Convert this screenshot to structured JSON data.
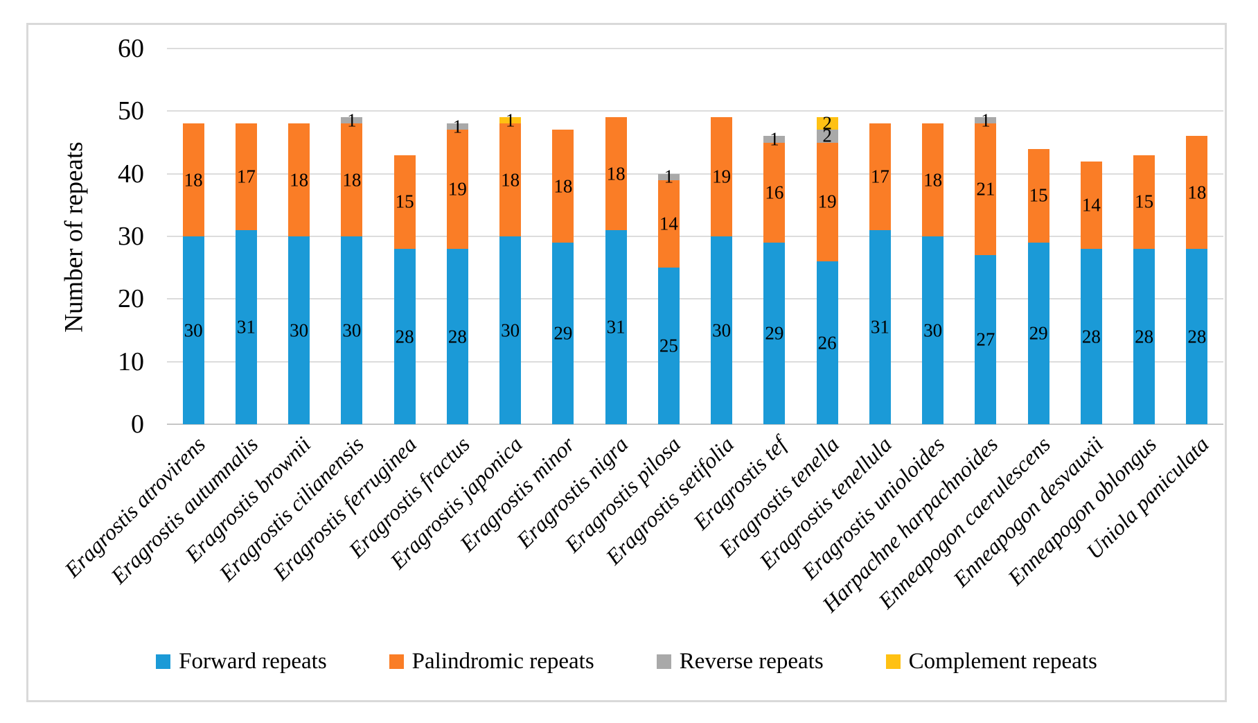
{
  "chart_data": {
    "type": "bar",
    "stacked": true,
    "title": "",
    "ylabel": "Number of repeats",
    "xlabel": "",
    "ylim": [
      0,
      60
    ],
    "yticks": [
      0,
      10,
      20,
      30,
      40,
      50,
      60
    ],
    "grid": true,
    "legend_position": "bottom",
    "categories": [
      "Eragrostis atrovirens",
      "Eragrostis autumnalis",
      "Eragrostis brownii",
      "Eragrostis cilianensis",
      "Eragrostis ferruginea",
      "Eragrostis fractus",
      "Eragrostis japonica",
      "Eragrostis minor",
      "Eragrostis nigra",
      "Eragrostis pilosa",
      "Eragrostis setifolia",
      "Eragrostis tef",
      "Eragrostis tenella",
      "Eragrostis tenellula",
      "Eragrostis unioloides",
      "Harpachne harpachnoides",
      "Enneapogon caerulescens",
      "Enneapogon desvauxii",
      "Enneapogon oblongus",
      "Uniola paniculata"
    ],
    "series": [
      {
        "name": "Forward repeats",
        "color": "#1b9ad7",
        "values": [
          30,
          31,
          30,
          30,
          28,
          28,
          30,
          29,
          31,
          25,
          30,
          29,
          26,
          31,
          30,
          27,
          29,
          28,
          28,
          28
        ]
      },
      {
        "name": "Palindromic repeats",
        "color": "#fa7d26",
        "values": [
          18,
          17,
          18,
          18,
          15,
          19,
          18,
          18,
          18,
          14,
          19,
          16,
          19,
          17,
          18,
          21,
          15,
          14,
          15,
          18
        ]
      },
      {
        "name": "Reverse repeats",
        "color": "#a9a9a9",
        "values": [
          0,
          0,
          0,
          1,
          0,
          1,
          0,
          0,
          0,
          1,
          0,
          1,
          2,
          0,
          0,
          1,
          0,
          0,
          0,
          0
        ]
      },
      {
        "name": "Complement repeats",
        "color": "#ffc113",
        "values": [
          0,
          0,
          0,
          0,
          0,
          0,
          1,
          0,
          0,
          0,
          0,
          0,
          2,
          0,
          0,
          0,
          0,
          0,
          0,
          0
        ]
      }
    ]
  },
  "colors": {
    "grid": "#dcdcdc",
    "baseline": "#c6c6c6",
    "frame_border": "#d9d9d9",
    "background": "#ffffff",
    "text": "#000000"
  }
}
